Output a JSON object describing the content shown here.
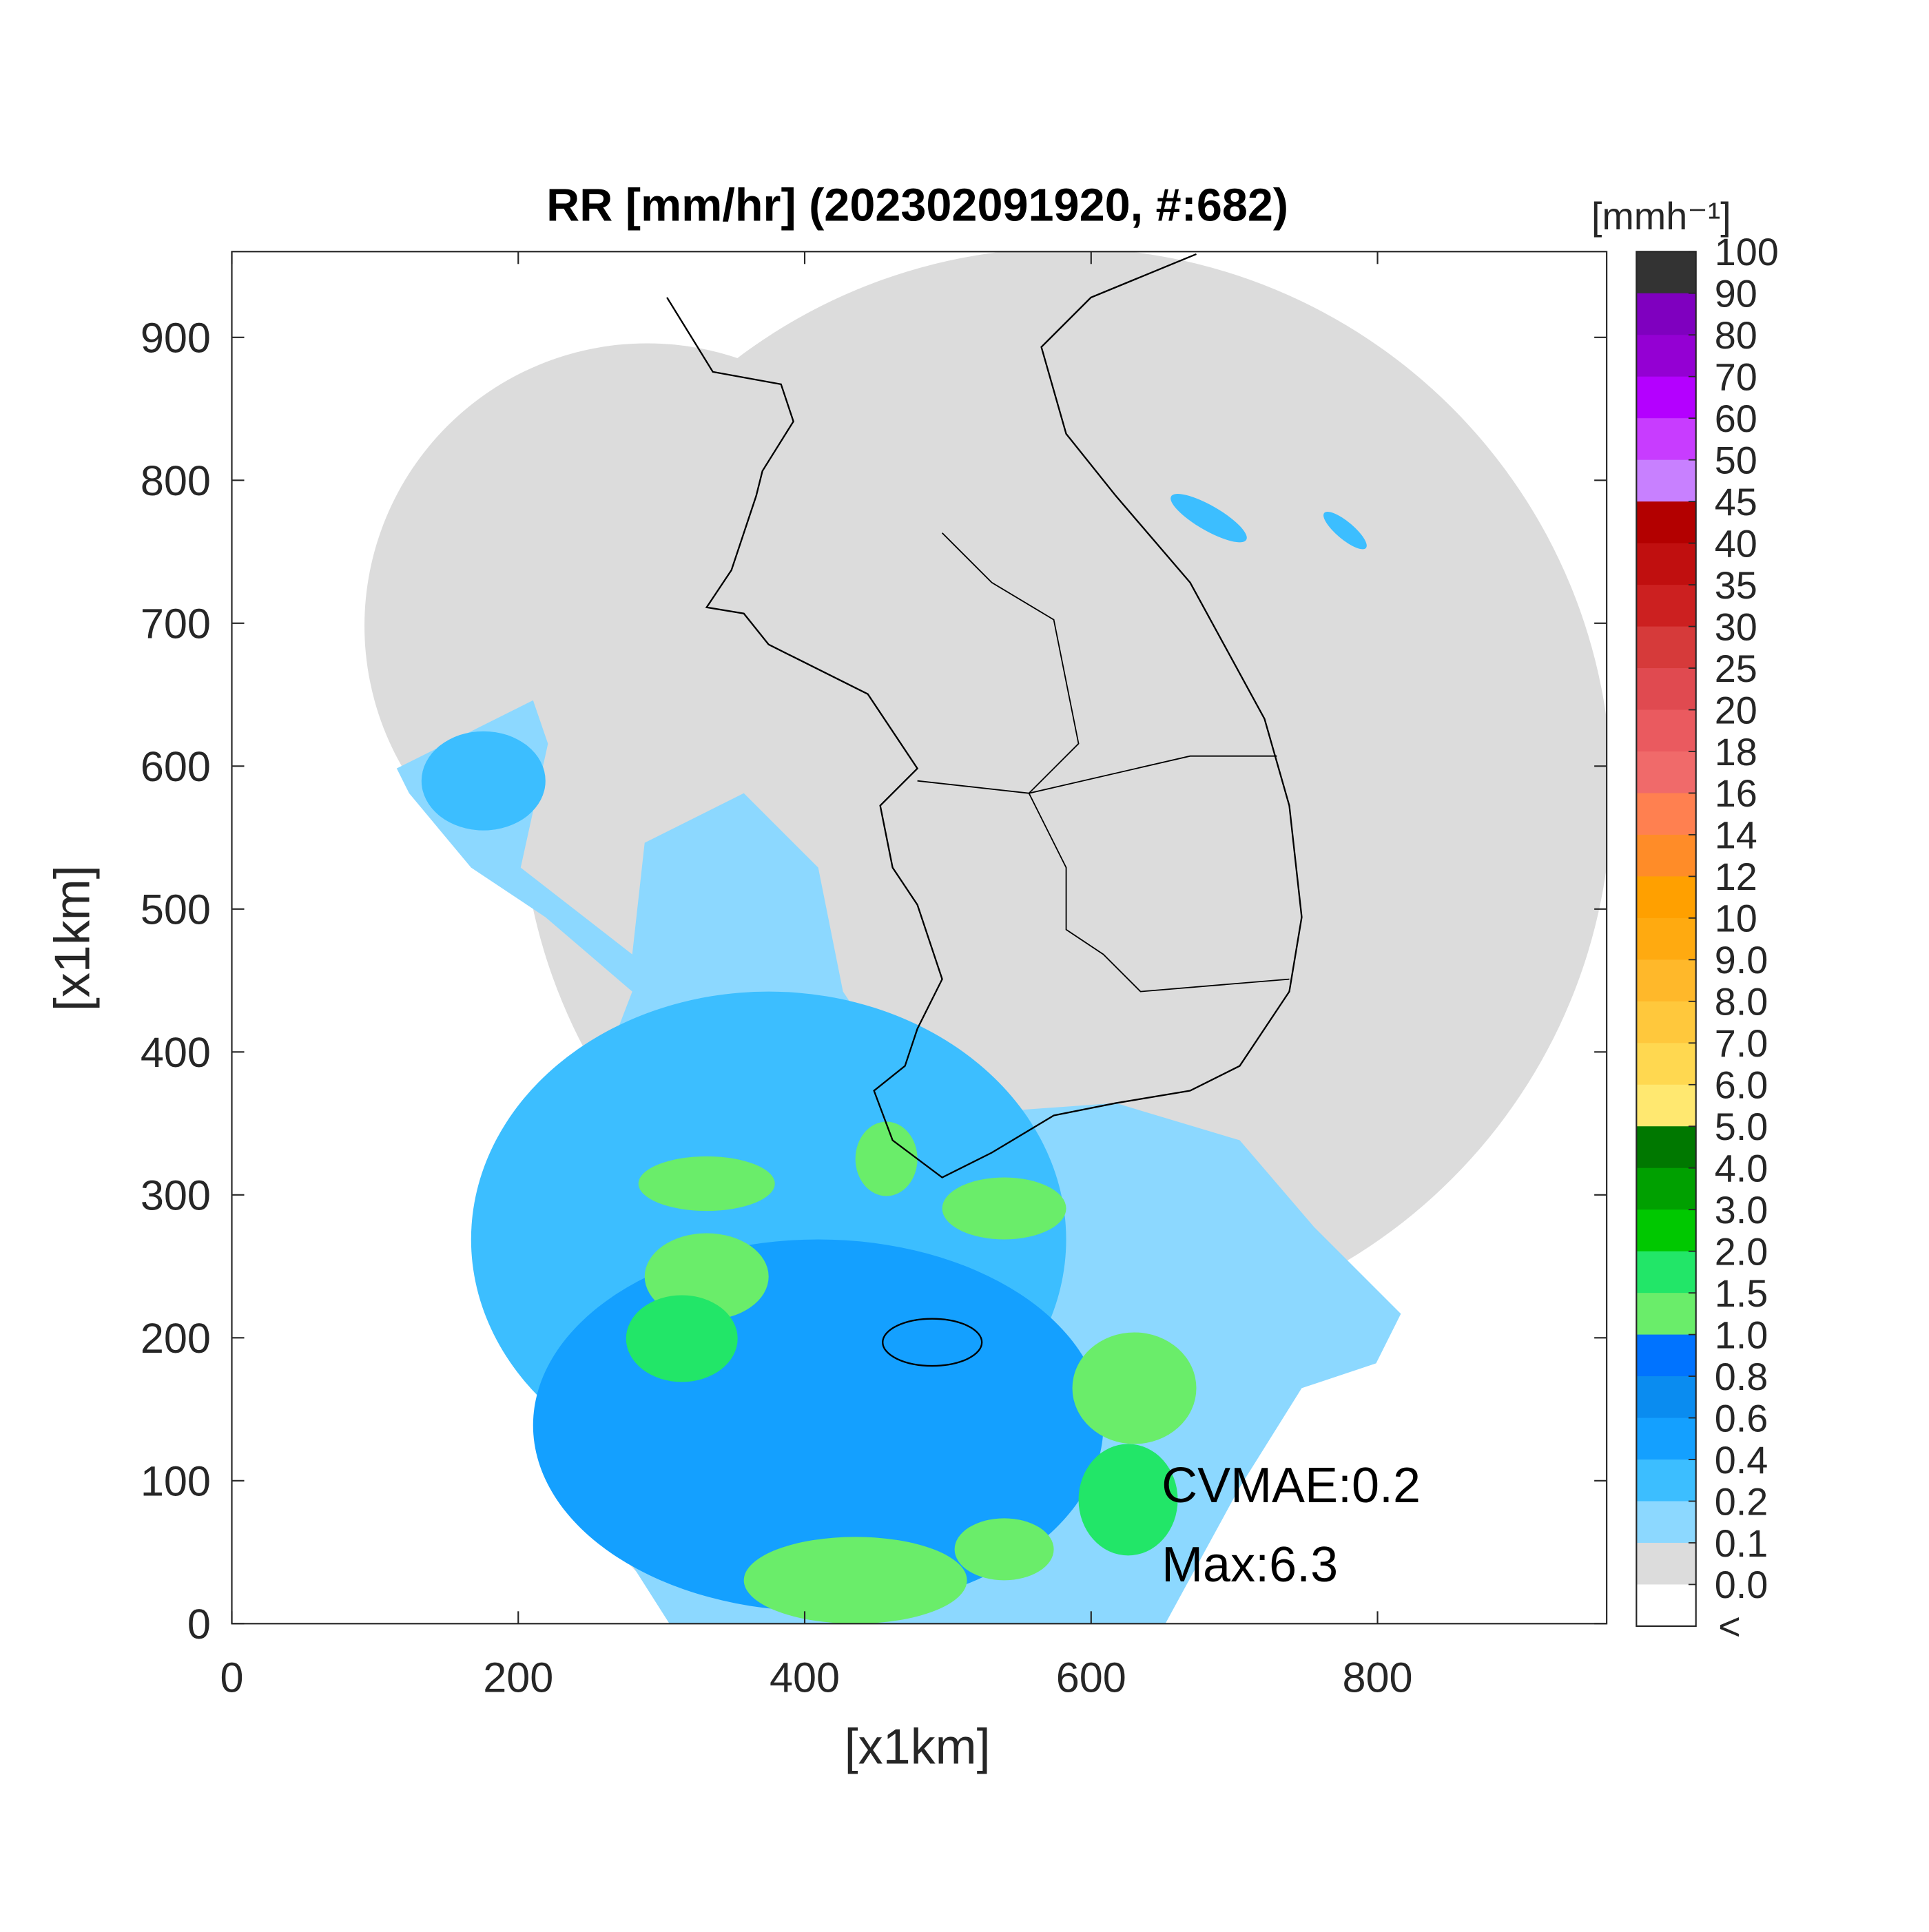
{
  "chart_data": {
    "type": "map",
    "title": "RR [mm/hr] (202302091920, #:682)",
    "xlabel": "[x1km]",
    "ylabel": "[x1km]",
    "xlim": [
      0,
      960
    ],
    "ylim": [
      0,
      960
    ],
    "xticks": [
      0,
      200,
      400,
      600,
      800
    ],
    "yticks": [
      0,
      100,
      200,
      300,
      400,
      500,
      600,
      700,
      800,
      900
    ],
    "annotations": [
      "CVMAE:0.2",
      "Max:6.3"
    ],
    "colorbar": {
      "unit": "[mmh⁻¹]",
      "ticks": [
        100,
        90,
        80,
        70,
        60,
        50,
        45,
        40,
        35,
        30,
        25,
        20,
        18,
        16,
        14,
        12,
        10,
        {
          "value": 9,
          "label": "9.0"
        },
        {
          "value": 8,
          "label": "8.0"
        },
        {
          "value": 7,
          "label": "7.0"
        },
        {
          "value": 6,
          "label": "6.0"
        },
        {
          "value": 5,
          "label": "5.0"
        },
        {
          "value": 4,
          "label": "4.0"
        },
        {
          "value": 3,
          "label": "3.0"
        },
        {
          "value": 2,
          "label": "2.0"
        },
        1.5,
        {
          "value": 1,
          "label": "1.0"
        },
        0.8,
        0.6,
        0.4,
        0.2,
        0.1,
        {
          "value": 0,
          "label": "0.0"
        }
      ],
      "under_label": "<",
      "colors": [
        "#333333",
        "#7f00bf",
        "#9400d3",
        "#b400ff",
        "#c83cff",
        "#c880ff",
        "#b30000",
        "#c00f0f",
        "#cc2020",
        "#d63a3a",
        "#e04a50",
        "#ea5a5f",
        "#f06a6a",
        "#ff8050",
        "#ff8c28",
        "#ffa000",
        "#ffaa10",
        "#ffb82a",
        "#ffc83c",
        "#ffd850",
        "#ffe870",
        "#007800",
        "#00a000",
        "#00c800",
        "#22e668",
        "#6aed6a",
        "#0073ff",
        "#0a8cf0",
        "#14a0ff",
        "#3cbeff",
        "#8cd8ff",
        "#dcdcdc",
        "#ffffff"
      ]
    }
  }
}
